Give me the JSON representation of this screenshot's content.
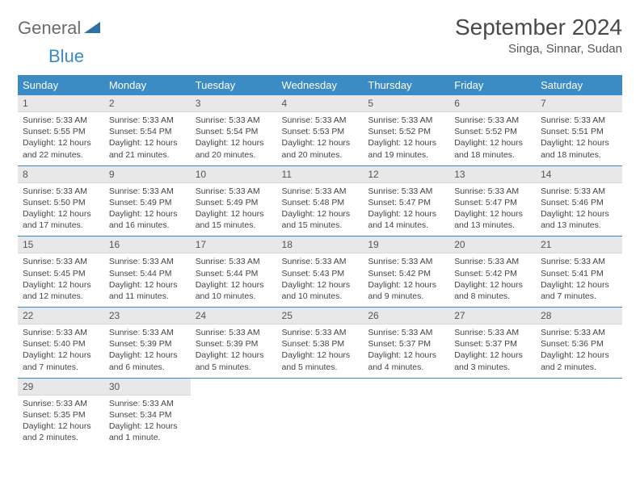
{
  "logo": {
    "general": "General",
    "blue": "Blue"
  },
  "title": "September 2024",
  "location": "Singa, Sinnar, Sudan",
  "colors": {
    "header_bg": "#3b8bc4",
    "header_text": "#ffffff",
    "daynum_bg": "#e8e8e8",
    "row_border": "#3b8bc4",
    "logo_grey": "#6b6b6b",
    "logo_blue": "#3b8bc4"
  },
  "day_headers": [
    "Sunday",
    "Monday",
    "Tuesday",
    "Wednesday",
    "Thursday",
    "Friday",
    "Saturday"
  ],
  "weeks": [
    [
      {
        "n": "1",
        "sunrise": "Sunrise: 5:33 AM",
        "sunset": "Sunset: 5:55 PM",
        "daylight": "Daylight: 12 hours and 22 minutes."
      },
      {
        "n": "2",
        "sunrise": "Sunrise: 5:33 AM",
        "sunset": "Sunset: 5:54 PM",
        "daylight": "Daylight: 12 hours and 21 minutes."
      },
      {
        "n": "3",
        "sunrise": "Sunrise: 5:33 AM",
        "sunset": "Sunset: 5:54 PM",
        "daylight": "Daylight: 12 hours and 20 minutes."
      },
      {
        "n": "4",
        "sunrise": "Sunrise: 5:33 AM",
        "sunset": "Sunset: 5:53 PM",
        "daylight": "Daylight: 12 hours and 20 minutes."
      },
      {
        "n": "5",
        "sunrise": "Sunrise: 5:33 AM",
        "sunset": "Sunset: 5:52 PM",
        "daylight": "Daylight: 12 hours and 19 minutes."
      },
      {
        "n": "6",
        "sunrise": "Sunrise: 5:33 AM",
        "sunset": "Sunset: 5:52 PM",
        "daylight": "Daylight: 12 hours and 18 minutes."
      },
      {
        "n": "7",
        "sunrise": "Sunrise: 5:33 AM",
        "sunset": "Sunset: 5:51 PM",
        "daylight": "Daylight: 12 hours and 18 minutes."
      }
    ],
    [
      {
        "n": "8",
        "sunrise": "Sunrise: 5:33 AM",
        "sunset": "Sunset: 5:50 PM",
        "daylight": "Daylight: 12 hours and 17 minutes."
      },
      {
        "n": "9",
        "sunrise": "Sunrise: 5:33 AM",
        "sunset": "Sunset: 5:49 PM",
        "daylight": "Daylight: 12 hours and 16 minutes."
      },
      {
        "n": "10",
        "sunrise": "Sunrise: 5:33 AM",
        "sunset": "Sunset: 5:49 PM",
        "daylight": "Daylight: 12 hours and 15 minutes."
      },
      {
        "n": "11",
        "sunrise": "Sunrise: 5:33 AM",
        "sunset": "Sunset: 5:48 PM",
        "daylight": "Daylight: 12 hours and 15 minutes."
      },
      {
        "n": "12",
        "sunrise": "Sunrise: 5:33 AM",
        "sunset": "Sunset: 5:47 PM",
        "daylight": "Daylight: 12 hours and 14 minutes."
      },
      {
        "n": "13",
        "sunrise": "Sunrise: 5:33 AM",
        "sunset": "Sunset: 5:47 PM",
        "daylight": "Daylight: 12 hours and 13 minutes."
      },
      {
        "n": "14",
        "sunrise": "Sunrise: 5:33 AM",
        "sunset": "Sunset: 5:46 PM",
        "daylight": "Daylight: 12 hours and 13 minutes."
      }
    ],
    [
      {
        "n": "15",
        "sunrise": "Sunrise: 5:33 AM",
        "sunset": "Sunset: 5:45 PM",
        "daylight": "Daylight: 12 hours and 12 minutes."
      },
      {
        "n": "16",
        "sunrise": "Sunrise: 5:33 AM",
        "sunset": "Sunset: 5:44 PM",
        "daylight": "Daylight: 12 hours and 11 minutes."
      },
      {
        "n": "17",
        "sunrise": "Sunrise: 5:33 AM",
        "sunset": "Sunset: 5:44 PM",
        "daylight": "Daylight: 12 hours and 10 minutes."
      },
      {
        "n": "18",
        "sunrise": "Sunrise: 5:33 AM",
        "sunset": "Sunset: 5:43 PM",
        "daylight": "Daylight: 12 hours and 10 minutes."
      },
      {
        "n": "19",
        "sunrise": "Sunrise: 5:33 AM",
        "sunset": "Sunset: 5:42 PM",
        "daylight": "Daylight: 12 hours and 9 minutes."
      },
      {
        "n": "20",
        "sunrise": "Sunrise: 5:33 AM",
        "sunset": "Sunset: 5:42 PM",
        "daylight": "Daylight: 12 hours and 8 minutes."
      },
      {
        "n": "21",
        "sunrise": "Sunrise: 5:33 AM",
        "sunset": "Sunset: 5:41 PM",
        "daylight": "Daylight: 12 hours and 7 minutes."
      }
    ],
    [
      {
        "n": "22",
        "sunrise": "Sunrise: 5:33 AM",
        "sunset": "Sunset: 5:40 PM",
        "daylight": "Daylight: 12 hours and 7 minutes."
      },
      {
        "n": "23",
        "sunrise": "Sunrise: 5:33 AM",
        "sunset": "Sunset: 5:39 PM",
        "daylight": "Daylight: 12 hours and 6 minutes."
      },
      {
        "n": "24",
        "sunrise": "Sunrise: 5:33 AM",
        "sunset": "Sunset: 5:39 PM",
        "daylight": "Daylight: 12 hours and 5 minutes."
      },
      {
        "n": "25",
        "sunrise": "Sunrise: 5:33 AM",
        "sunset": "Sunset: 5:38 PM",
        "daylight": "Daylight: 12 hours and 5 minutes."
      },
      {
        "n": "26",
        "sunrise": "Sunrise: 5:33 AM",
        "sunset": "Sunset: 5:37 PM",
        "daylight": "Daylight: 12 hours and 4 minutes."
      },
      {
        "n": "27",
        "sunrise": "Sunrise: 5:33 AM",
        "sunset": "Sunset: 5:37 PM",
        "daylight": "Daylight: 12 hours and 3 minutes."
      },
      {
        "n": "28",
        "sunrise": "Sunrise: 5:33 AM",
        "sunset": "Sunset: 5:36 PM",
        "daylight": "Daylight: 12 hours and 2 minutes."
      }
    ],
    [
      {
        "n": "29",
        "sunrise": "Sunrise: 5:33 AM",
        "sunset": "Sunset: 5:35 PM",
        "daylight": "Daylight: 12 hours and 2 minutes."
      },
      {
        "n": "30",
        "sunrise": "Sunrise: 5:33 AM",
        "sunset": "Sunset: 5:34 PM",
        "daylight": "Daylight: 12 hours and 1 minute."
      },
      null,
      null,
      null,
      null,
      null
    ]
  ]
}
